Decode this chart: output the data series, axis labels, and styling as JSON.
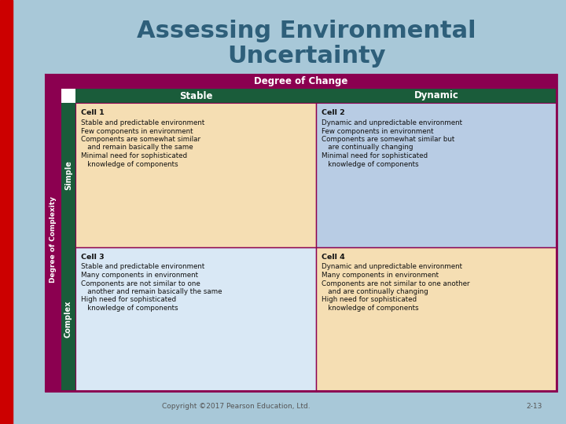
{
  "title_line1": "Assessing Environmental",
  "title_line2": "Uncertainty",
  "title_color": "#2E5F7A",
  "bg_color": "#A8C8D8",
  "red_bar_color": "#CC0000",
  "degree_of_change_label": "Degree of Change",
  "degree_of_change_bg": "#8B0050",
  "degree_of_change_text": "#FFFFFF",
  "col_header_bg": "#1A5C3A",
  "col_header_text": "#FFFFFF",
  "col_stable": "Stable",
  "col_dynamic": "Dynamic",
  "row_header_bg": "#8B0050",
  "row_header_text": "#FFFFFF",
  "row_simple": "Simple",
  "row_complex": "Complex",
  "side_label": "Degree of Complexity",
  "cell1_bg": "#F5DEB3",
  "cell2_bg": "#B8CCE4",
  "cell3_bg": "#D9E8F5",
  "cell4_bg": "#F5DEB3",
  "table_border_color": "#8B0050",
  "cell_border_color": "#8B0050",
  "cell1_title": "Cell 1",
  "cell1_lines": [
    "Stable and predictable environment",
    "Few components in environment",
    "Components are somewhat similar",
    "   and remain basically the same",
    "Minimal need for sophisticated",
    "   knowledge of components"
  ],
  "cell2_title": "Cell 2",
  "cell2_lines": [
    "Dynamic and unpredictable environment",
    "Few components in environment",
    "Components are somewhat similar but",
    "   are continually changing",
    "Minimal need for sophisticated",
    "   knowledge of components"
  ],
  "cell3_title": "Cell 3",
  "cell3_lines": [
    "Stable and predictable environment",
    "Many components in environment",
    "Components are not similar to one",
    "   another and remain basically the same",
    "High need for sophisticated",
    "   knowledge of components"
  ],
  "cell4_title": "Cell 4",
  "cell4_lines": [
    "Dynamic and unpredictable environment",
    "Many components in environment",
    "Components are not similar to one another",
    "   and are continually changing",
    "High need for sophisticated",
    "   knowledge of components"
  ],
  "copyright": "Copyright ©2017 Pearson Education, Ltd.",
  "page_num": "2-13",
  "footer_color": "#555555"
}
